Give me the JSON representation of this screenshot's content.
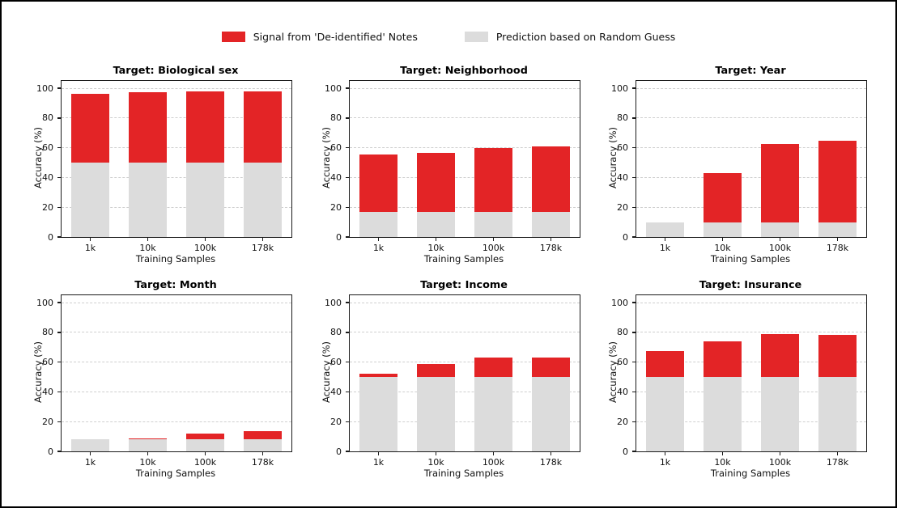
{
  "figure": {
    "background": "#ffffff",
    "border_color": "#000000"
  },
  "legend": {
    "items": [
      {
        "label": "Signal from 'De-identified' Notes",
        "color": "#e32426"
      },
      {
        "label": "Prediction based on Random Guess",
        "color": "#dcdcdc"
      }
    ]
  },
  "chart_data": [
    {
      "type": "bar",
      "stacked": true,
      "title": "Target: Biological sex",
      "xlabel": "Training Samples",
      "ylabel": "Accuracy (%)",
      "categories": [
        "1k",
        "10k",
        "100k",
        "178k"
      ],
      "ylim": [
        0,
        105
      ],
      "yticks": [
        0,
        20,
        40,
        60,
        80,
        100
      ],
      "grid": "dashed-horizontal",
      "series": [
        {
          "name": "Prediction based on Random Guess",
          "color": "#dcdcdc",
          "values": [
            50,
            50,
            50,
            50
          ]
        },
        {
          "name": "Signal from 'De-identified' Notes",
          "color": "#e32426",
          "values": [
            46.5,
            47.3,
            48,
            48
          ]
        }
      ],
      "totals": [
        96.5,
        97.3,
        98,
        98
      ]
    },
    {
      "type": "bar",
      "stacked": true,
      "title": "Target: Neighborhood",
      "xlabel": "Training Samples",
      "ylabel": "Accuracy (%)",
      "categories": [
        "1k",
        "10k",
        "100k",
        "178k"
      ],
      "ylim": [
        0,
        105
      ],
      "yticks": [
        0,
        20,
        40,
        60,
        80,
        100
      ],
      "grid": "dashed-horizontal",
      "series": [
        {
          "name": "Prediction based on Random Guess",
          "color": "#dcdcdc",
          "values": [
            16.7,
            16.7,
            16.7,
            16.7
          ]
        },
        {
          "name": "Signal from 'De-identified' Notes",
          "color": "#e32426",
          "values": [
            38.8,
            39.8,
            43.1,
            44.3
          ]
        }
      ],
      "totals": [
        55.5,
        56.5,
        59.8,
        61
      ]
    },
    {
      "type": "bar",
      "stacked": true,
      "title": "Target: Year",
      "xlabel": "Training Samples",
      "ylabel": "Accuracy (%)",
      "categories": [
        "1k",
        "10k",
        "100k",
        "178k"
      ],
      "ylim": [
        0,
        105
      ],
      "yticks": [
        0,
        20,
        40,
        60,
        80,
        100
      ],
      "grid": "dashed-horizontal",
      "series": [
        {
          "name": "Prediction based on Random Guess",
          "color": "#dcdcdc",
          "values": [
            10,
            10,
            10,
            10
          ]
        },
        {
          "name": "Signal from 'De-identified' Notes",
          "color": "#e32426",
          "values": [
            0,
            33,
            52.5,
            55
          ]
        }
      ],
      "totals": [
        10,
        43,
        62.5,
        65
      ]
    },
    {
      "type": "bar",
      "stacked": true,
      "title": "Target: Month",
      "xlabel": "Training Samples",
      "ylabel": "Accuracy (%)",
      "categories": [
        "1k",
        "10k",
        "100k",
        "178k"
      ],
      "ylim": [
        0,
        105
      ],
      "yticks": [
        0,
        20,
        40,
        60,
        80,
        100
      ],
      "grid": "dashed-horizontal",
      "series": [
        {
          "name": "Prediction based on Random Guess",
          "color": "#dcdcdc",
          "values": [
            8.3,
            8.3,
            8.3,
            8.3
          ]
        },
        {
          "name": "Signal from 'De-identified' Notes",
          "color": "#e32426",
          "values": [
            0,
            0.5,
            3.7,
            5.2
          ]
        }
      ],
      "totals": [
        8.3,
        8.8,
        12,
        13.5
      ]
    },
    {
      "type": "bar",
      "stacked": true,
      "title": "Target: Income",
      "xlabel": "Training Samples",
      "ylabel": "Accuracy (%)",
      "categories": [
        "1k",
        "10k",
        "100k",
        "178k"
      ],
      "ylim": [
        0,
        105
      ],
      "yticks": [
        0,
        20,
        40,
        60,
        80,
        100
      ],
      "grid": "dashed-horizontal",
      "series": [
        {
          "name": "Prediction based on Random Guess",
          "color": "#dcdcdc",
          "values": [
            50,
            50,
            50,
            50
          ]
        },
        {
          "name": "Signal from 'De-identified' Notes",
          "color": "#e32426",
          "values": [
            2.3,
            9,
            13,
            13.3
          ]
        }
      ],
      "totals": [
        52.3,
        59,
        63,
        63.3
      ]
    },
    {
      "type": "bar",
      "stacked": true,
      "title": "Target: Insurance",
      "xlabel": "Training Samples",
      "ylabel": "Accuracy (%)",
      "categories": [
        "1k",
        "10k",
        "100k",
        "178k"
      ],
      "ylim": [
        0,
        105
      ],
      "yticks": [
        0,
        20,
        40,
        60,
        80,
        100
      ],
      "grid": "dashed-horizontal",
      "series": [
        {
          "name": "Prediction based on Random Guess",
          "color": "#dcdcdc",
          "values": [
            50,
            50,
            50,
            50
          ]
        },
        {
          "name": "Signal from 'De-identified' Notes",
          "color": "#e32426",
          "values": [
            17.5,
            24,
            29,
            28.5
          ]
        }
      ],
      "totals": [
        67.5,
        74,
        79,
        78.5
      ]
    }
  ]
}
